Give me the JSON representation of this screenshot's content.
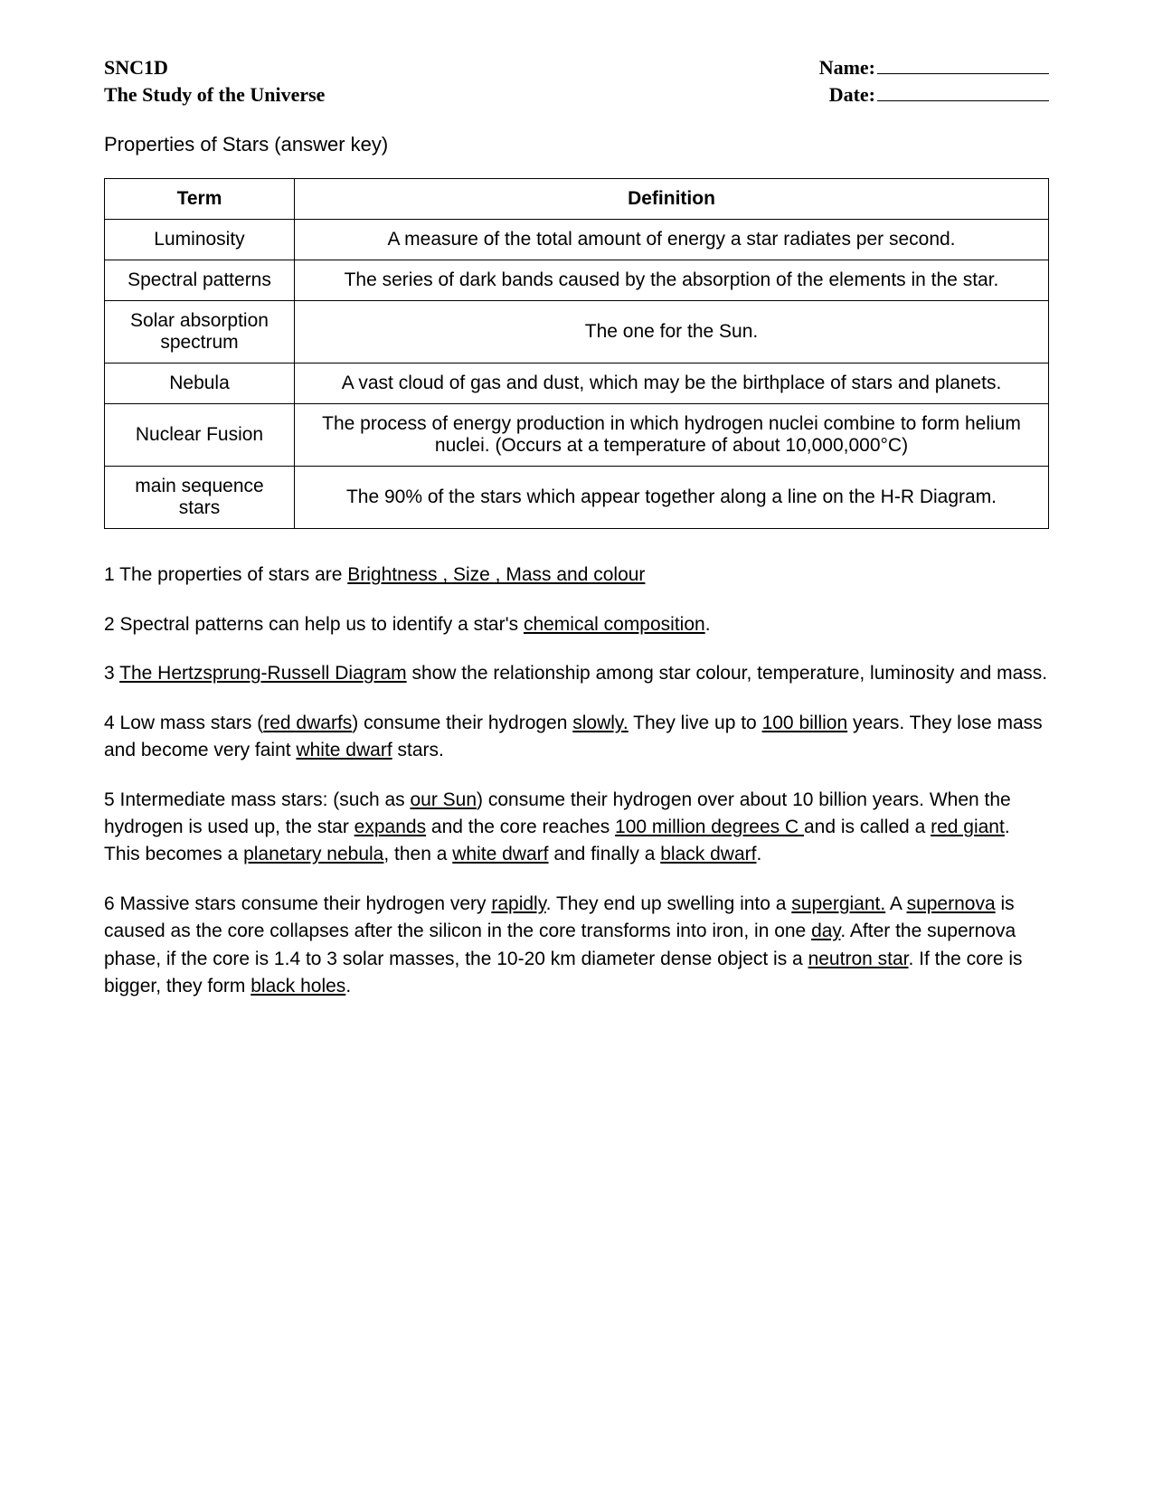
{
  "header": {
    "course_code": "SNC1D",
    "unit_title": "The Study of the Universe",
    "name_label": "Name:",
    "date_label": "Date:"
  },
  "section_title": "Properties of Stars (answer key)",
  "table": {
    "col_term": "Term",
    "col_def": "Definition",
    "rows": [
      {
        "term": "Luminosity",
        "def": "A measure of the total amount of energy a star radiates per second."
      },
      {
        "term": "Spectral patterns",
        "def": "The series of dark bands caused by the absorption of the elements in the star."
      },
      {
        "term": "Solar absorption spectrum",
        "def": "The one for the Sun."
      },
      {
        "term": "Nebula",
        "def": "A vast cloud of gas and dust, which may be the birthplace of stars and planets."
      },
      {
        "term": "Nuclear Fusion",
        "def": "The process of energy production in which hydrogen nuclei combine to form helium nuclei. (Occurs at a temperature of about 10,000,000°C)"
      },
      {
        "term": "main sequence stars",
        "def": "The 90% of the stars which appear together along a line on the H-R Diagram."
      }
    ]
  },
  "notes": {
    "n1": {
      "num": "1",
      "a": "  The properties of stars are ",
      "u1": "Brightness , Size , Mass and colour"
    },
    "n2": {
      "num": "2",
      "a": "  Spectral patterns can help us to identify a star's ",
      "u1": "chemical composition",
      "b": "."
    },
    "n3": {
      "num": "3",
      "a": "  ",
      "u1": "The Hertzsprung-Russell Diagram",
      "b": " show the relationship among star colour, temperature, luminosity and mass."
    },
    "n4": {
      "num": "4",
      "a": "  Low mass stars (",
      "u1": "red dwarfs",
      "b": ") consume their hydrogen ",
      "u2": "slowly.",
      "c": "  They live up to ",
      "u3": "100 billion",
      "d": " years.  They lose mass and become very faint ",
      "u4": "white dwarf",
      "e": " stars."
    },
    "n5": {
      "num": "5",
      "a": "  Intermediate mass stars: (such as ",
      "u1": "our Sun",
      "b": ") consume their hydrogen over about 10 billion years.  When the hydrogen is used up, the star ",
      "u2": "expands",
      "c": " and the core reaches ",
      "u3": "100 million degrees C ",
      "d": "and is called a ",
      "u4": "red giant",
      "e": ".  This becomes a ",
      "u5": "planetary nebula",
      "f": ", then a ",
      "u6": "white dwarf",
      "g": " and finally a ",
      "u7": "black dwarf",
      "h": "."
    },
    "n6": {
      "num": "6",
      "a": "   Massive stars consume their hydrogen very ",
      "u1": "rapidly",
      "b": ".  They end up swelling into a ",
      "u2": "supergiant.",
      "c": " A ",
      "u3": "supernova",
      "d": " is caused as the core collapses after the silicon in the core transforms into iron, in one ",
      "u4": "day",
      "e": ".  After the supernova phase, if the core is 1.4 to 3 solar masses, the 10-20 km diameter dense object is a ",
      "u5": "neutron star",
      "f": ".  If the core is bigger, they form ",
      "u6": "black holes",
      "g": "."
    }
  }
}
